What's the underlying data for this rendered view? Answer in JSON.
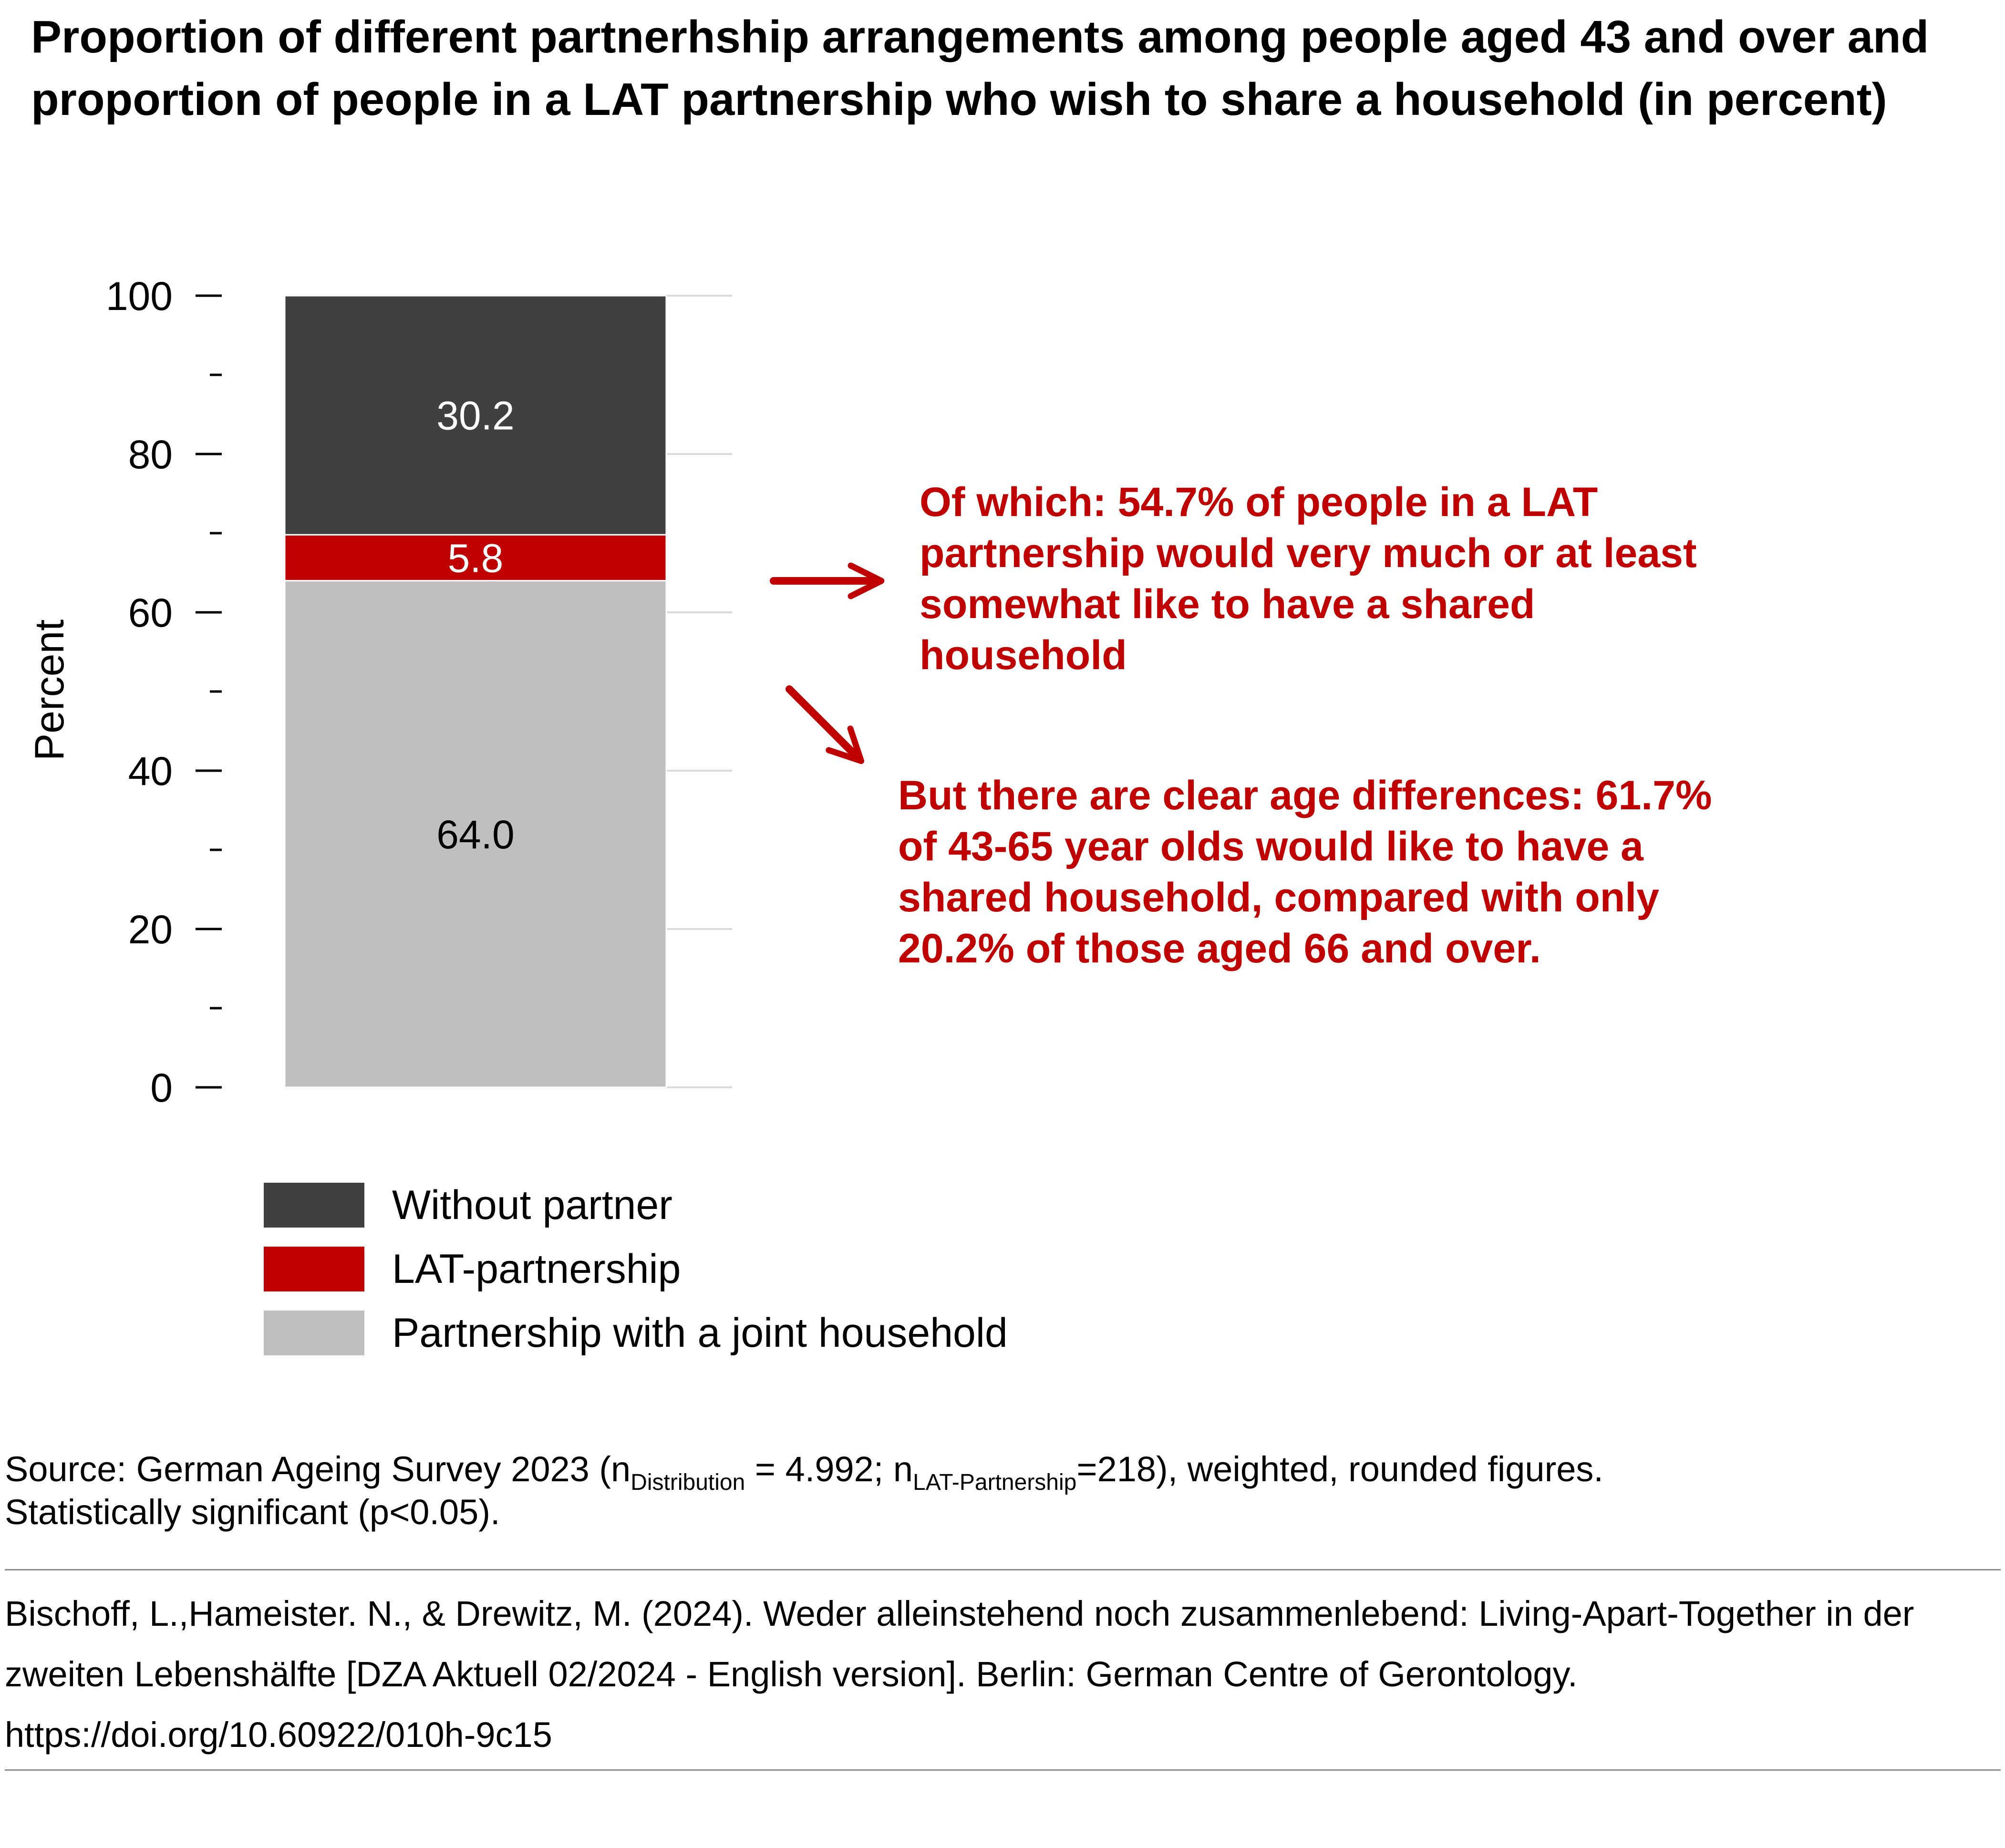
{
  "title": "Proportion of different partnerhship arrangements among people aged 43 and over and proportion of people in a LAT partnership who wish to share a household (in percent)",
  "chart_data": {
    "type": "bar",
    "stacked": true,
    "ylabel": "Percent",
    "ylim": [
      0,
      100
    ],
    "yticks": [
      0,
      20,
      40,
      60,
      80,
      100
    ],
    "ytick_labels": [
      "0",
      "20",
      "40",
      "60",
      "80",
      "100"
    ],
    "minor_ticks": [
      10,
      30,
      50,
      70,
      90
    ],
    "grid": true,
    "legend_position": "bottom",
    "series": [
      {
        "name": "Partnership with a joint household",
        "values": [
          64.0
        ],
        "color": "#bfbfbf",
        "label": "64.0",
        "label_color": "#000000"
      },
      {
        "name": "LAT-partnership",
        "values": [
          5.8
        ],
        "color": "#c00000",
        "label": "5.8",
        "label_color": "#ffffff"
      },
      {
        "name": "Without partner",
        "values": [
          30.2
        ],
        "color": "#404040",
        "label": "30.2",
        "label_color": "#ffffff"
      }
    ]
  },
  "legend": [
    {
      "label": "Without partner",
      "color": "#404040"
    },
    {
      "label": "LAT-partnership",
      "color": "#c00000"
    },
    {
      "label": "Partnership with a joint household",
      "color": "#bfbfbf"
    }
  ],
  "annotations": {
    "note1": "Of which: 54.7% of people in a LAT partnership would very much or at least somewhat like to have a shared household",
    "note2": "But there are clear age differences: 61.7% of 43-65 year olds would like to have a shared household, compared with only 20.2% of those aged 66 and over.",
    "color": "#c00000"
  },
  "source": {
    "prefix": "Source: German Ageing Survey 2023 (n",
    "sub1": "Distribution",
    "mid": " = 4.992; n",
    "sub2": "LAT-Partnership",
    "suffix": "=218), weighted, rounded figures.",
    "line2": "Statistically significant (p<0.05)."
  },
  "citation": "Bischoff, L.,Hameister. N., & Drewitz, M. (2024). Weder alleinstehend noch zusammenlebend: Living-Apart-Together in der zweiten Lebenshälfte [DZA Aktuell 02/2024 - English version]. Berlin: German Centre of Gerontology. https://doi.org/10.60922/010h-9c15"
}
